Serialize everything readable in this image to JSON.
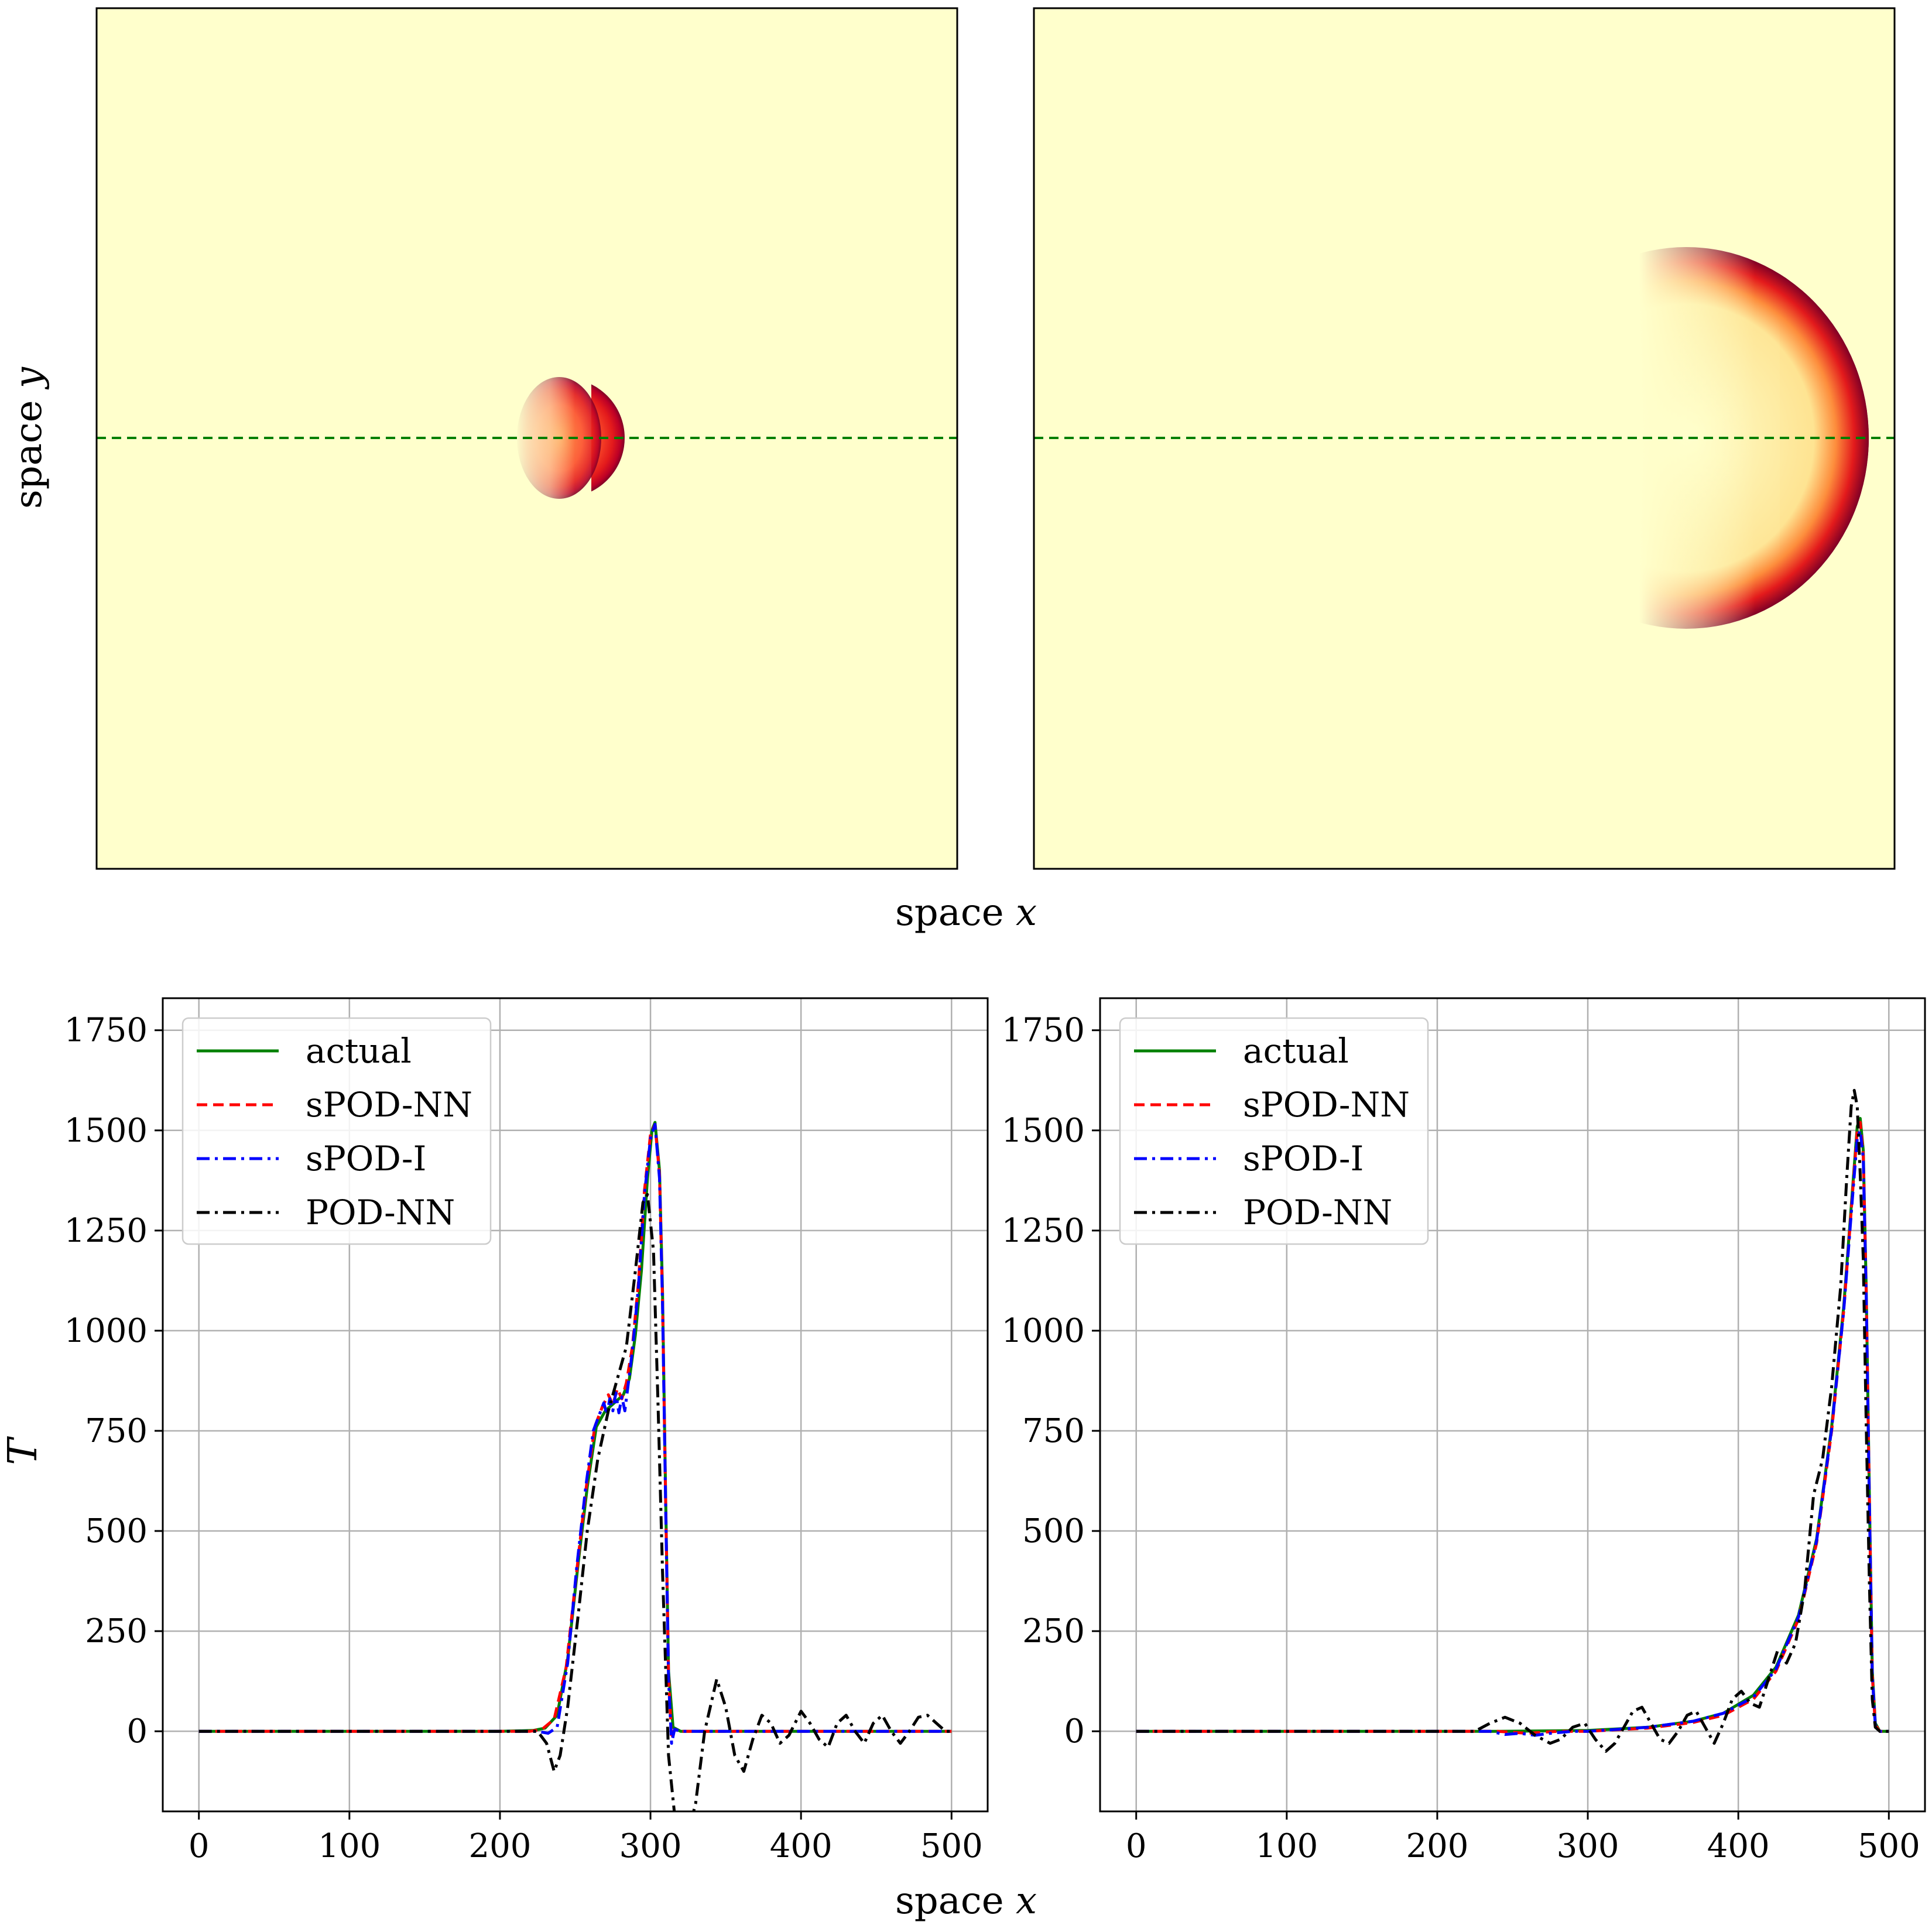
{
  "labels": {
    "top_ylabel_text": "space ",
    "top_ylabel_var": "y",
    "top_xlabel_text": "space ",
    "top_xlabel_var": "x",
    "bottom_ylabel": "T",
    "bottom_xlabel_text": "space ",
    "bottom_xlabel_var": "x"
  },
  "colors": {
    "background_field": "#ffffcc",
    "front_inner": "#fed976",
    "front_mid": "#fd8d3c",
    "front_hot": "#e31a1c",
    "front_peak": "#800026",
    "probe_line": "#007f00",
    "actual": "#008000",
    "sPOD-NN": "#ff0000",
    "sPOD-I": "#0000ff",
    "POD-NN": "#000000",
    "grid": "#b0b0b0"
  },
  "chart_data": [
    {
      "type": "heatmap",
      "panel": "top-left",
      "colormap": "YlOrRd",
      "probe_line": "horizontal dashed green line at mid height",
      "front_shape": "small half-disc flame front, right of center",
      "front_x_fraction": 0.6,
      "front_radius_fraction": 0.07
    },
    {
      "type": "heatmap",
      "panel": "top-right",
      "colormap": "YlOrRd",
      "probe_line": "horizontal dashed green line at mid height",
      "front_shape": "large crescent flame front near right edge",
      "front_x_fraction": 0.97,
      "front_radius_fraction": 0.22
    },
    {
      "type": "line",
      "panel": "bottom-left",
      "xlim": [
        -24,
        524
      ],
      "ylim": [
        -200,
        1830
      ],
      "xticks": [
        0,
        100,
        200,
        300,
        400,
        500
      ],
      "yticks": [
        0,
        250,
        500,
        750,
        1000,
        1250,
        1500,
        1750
      ],
      "grid": true,
      "legend": "top-left",
      "series": [
        {
          "name": "actual",
          "style": "solid",
          "points": [
            [
              0,
              0
            ],
            [
              200,
              0
            ],
            [
              222,
              2
            ],
            [
              230,
              8
            ],
            [
              238,
              40
            ],
            [
              245,
              180
            ],
            [
              252,
              420
            ],
            [
              258,
              610
            ],
            [
              264,
              760
            ],
            [
              270,
              800
            ],
            [
              276,
              820
            ],
            [
              282,
              840
            ],
            [
              286,
              880
            ],
            [
              290,
              990
            ],
            [
              294,
              1150
            ],
            [
              298,
              1380
            ],
            [
              301,
              1500
            ],
            [
              303,
              1520
            ],
            [
              306,
              1400
            ],
            [
              308,
              1100
            ],
            [
              310,
              600
            ],
            [
              312,
              150
            ],
            [
              315,
              10
            ],
            [
              320,
              0
            ],
            [
              500,
              0
            ]
          ]
        },
        {
          "name": "sPOD-NN",
          "style": "dashed",
          "points": [
            [
              0,
              0
            ],
            [
              220,
              0
            ],
            [
              228,
              5
            ],
            [
              236,
              30
            ],
            [
              244,
              160
            ],
            [
              251,
              400
            ],
            [
              257,
              600
            ],
            [
              263,
              760
            ],
            [
              268,
              810
            ],
            [
              272,
              840
            ],
            [
              275,
              815
            ],
            [
              278,
              855
            ],
            [
              281,
              830
            ],
            [
              284,
              870
            ],
            [
              288,
              960
            ],
            [
              292,
              1120
            ],
            [
              296,
              1350
            ],
            [
              300,
              1490
            ],
            [
              303,
              1515
            ],
            [
              306,
              1390
            ],
            [
              308,
              1080
            ],
            [
              310,
              590
            ],
            [
              312,
              140
            ],
            [
              314,
              -20
            ],
            [
              316,
              5
            ],
            [
              320,
              0
            ],
            [
              500,
              0
            ]
          ]
        },
        {
          "name": "sPOD-I",
          "style": "dashdot",
          "points": [
            [
              0,
              0
            ],
            [
              225,
              0
            ],
            [
              232,
              -5
            ],
            [
              238,
              10
            ],
            [
              245,
              170
            ],
            [
              251,
              410
            ],
            [
              257,
              610
            ],
            [
              262,
              750
            ],
            [
              266,
              790
            ],
            [
              269,
              820
            ],
            [
              271,
              790
            ],
            [
              273,
              830
            ],
            [
              275,
              800
            ],
            [
              277,
              845
            ],
            [
              279,
              795
            ],
            [
              281,
              835
            ],
            [
              283,
              800
            ],
            [
              285,
              860
            ],
            [
              288,
              950
            ],
            [
              292,
              1110
            ],
            [
              296,
              1340
            ],
            [
              300,
              1480
            ],
            [
              303,
              1515
            ],
            [
              306,
              1380
            ],
            [
              308,
              1070
            ],
            [
              310,
              580
            ],
            [
              312,
              130
            ],
            [
              314,
              -30
            ],
            [
              316,
              5
            ],
            [
              320,
              0
            ],
            [
              500,
              0
            ]
          ]
        },
        {
          "name": "POD-NN",
          "style": "dashdot",
          "points": [
            [
              0,
              0
            ],
            [
              225,
              0
            ],
            [
              231,
              -30
            ],
            [
              236,
              -100
            ],
            [
              240,
              -60
            ],
            [
              245,
              60
            ],
            [
              252,
              290
            ],
            [
              258,
              500
            ],
            [
              265,
              680
            ],
            [
              272,
              800
            ],
            [
              278,
              880
            ],
            [
              284,
              960
            ],
            [
              290,
              1150
            ],
            [
              295,
              1320
            ],
            [
              298,
              1340
            ],
            [
              302,
              1200
            ],
            [
              305,
              820
            ],
            [
              308,
              400
            ],
            [
              312,
              -60
            ],
            [
              318,
              -280
            ],
            [
              322,
              -300
            ],
            [
              330,
              -180
            ],
            [
              336,
              0
            ],
            [
              344,
              130
            ],
            [
              350,
              60
            ],
            [
              356,
              -60
            ],
            [
              362,
              -100
            ],
            [
              368,
              -20
            ],
            [
              374,
              40
            ],
            [
              380,
              20
            ],
            [
              386,
              -30
            ],
            [
              392,
              -10
            ],
            [
              400,
              50
            ],
            [
              406,
              20
            ],
            [
              412,
              -20
            ],
            [
              418,
              -40
            ],
            [
              424,
              20
            ],
            [
              430,
              40
            ],
            [
              436,
              0
            ],
            [
              442,
              -30
            ],
            [
              448,
              20
            ],
            [
              454,
              40
            ],
            [
              460,
              0
            ],
            [
              466,
              -30
            ],
            [
              472,
              0
            ],
            [
              478,
              35
            ],
            [
              484,
              40
            ],
            [
              490,
              20
            ],
            [
              496,
              0
            ],
            [
              500,
              0
            ]
          ]
        }
      ]
    },
    {
      "type": "line",
      "panel": "bottom-right",
      "xlim": [
        -24,
        524
      ],
      "ylim": [
        -200,
        1830
      ],
      "xticks": [
        0,
        100,
        200,
        300,
        400,
        500
      ],
      "yticks": [
        0,
        250,
        500,
        750,
        1000,
        1250,
        1500,
        1750
      ],
      "grid": true,
      "legend": "top-left",
      "series": [
        {
          "name": "actual",
          "style": "solid",
          "points": [
            [
              0,
              0
            ],
            [
              240,
              0
            ],
            [
              300,
              2
            ],
            [
              340,
              10
            ],
            [
              370,
              25
            ],
            [
              390,
              45
            ],
            [
              410,
              90
            ],
            [
              425,
              160
            ],
            [
              440,
              290
            ],
            [
              452,
              480
            ],
            [
              462,
              760
            ],
            [
              470,
              1060
            ],
            [
              476,
              1360
            ],
            [
              479,
              1510
            ],
            [
              481,
              1530
            ],
            [
              483,
              1450
            ],
            [
              485,
              1100
            ],
            [
              487,
              600
            ],
            [
              489,
              150
            ],
            [
              491,
              20
            ],
            [
              494,
              0
            ],
            [
              500,
              0
            ]
          ]
        },
        {
          "name": "sPOD-NN",
          "style": "dashed",
          "points": [
            [
              0,
              0
            ],
            [
              240,
              0
            ],
            [
              260,
              -5
            ],
            [
              280,
              0
            ],
            [
              300,
              0
            ],
            [
              340,
              8
            ],
            [
              370,
              22
            ],
            [
              390,
              40
            ],
            [
              410,
              80
            ],
            [
              425,
              150
            ],
            [
              440,
              280
            ],
            [
              452,
              470
            ],
            [
              462,
              750
            ],
            [
              470,
              1050
            ],
            [
              476,
              1350
            ],
            [
              479,
              1500
            ],
            [
              481,
              1520
            ],
            [
              483,
              1440
            ],
            [
              485,
              1090
            ],
            [
              487,
              590
            ],
            [
              489,
              140
            ],
            [
              491,
              15
            ],
            [
              494,
              0
            ],
            [
              500,
              0
            ]
          ]
        },
        {
          "name": "sPOD-I",
          "style": "dashdot",
          "points": [
            [
              0,
              0
            ],
            [
              235,
              0
            ],
            [
              245,
              -8
            ],
            [
              255,
              -5
            ],
            [
              265,
              -10
            ],
            [
              275,
              -5
            ],
            [
              290,
              0
            ],
            [
              300,
              0
            ],
            [
              340,
              10
            ],
            [
              370,
              25
            ],
            [
              390,
              45
            ],
            [
              410,
              85
            ],
            [
              425,
              155
            ],
            [
              440,
              285
            ],
            [
              452,
              475
            ],
            [
              462,
              755
            ],
            [
              470,
              1050
            ],
            [
              476,
              1340
            ],
            [
              479,
              1480
            ],
            [
              481,
              1500
            ],
            [
              483,
              1430
            ],
            [
              485,
              1080
            ],
            [
              487,
              580
            ],
            [
              489,
              140
            ],
            [
              491,
              15
            ],
            [
              494,
              0
            ],
            [
              500,
              0
            ]
          ]
        },
        {
          "name": "POD-NN",
          "style": "dashdot",
          "points": [
            [
              0,
              0
            ],
            [
              225,
              0
            ],
            [
              235,
              20
            ],
            [
              245,
              35
            ],
            [
              255,
              20
            ],
            [
              265,
              -10
            ],
            [
              275,
              -30
            ],
            [
              282,
              -20
            ],
            [
              290,
              10
            ],
            [
              298,
              20
            ],
            [
              305,
              -20
            ],
            [
              312,
              -50
            ],
            [
              318,
              -30
            ],
            [
              324,
              10
            ],
            [
              330,
              50
            ],
            [
              336,
              60
            ],
            [
              342,
              20
            ],
            [
              348,
              -20
            ],
            [
              354,
              -30
            ],
            [
              360,
              0
            ],
            [
              366,
              40
            ],
            [
              372,
              50
            ],
            [
              378,
              10
            ],
            [
              384,
              -30
            ],
            [
              390,
              20
            ],
            [
              396,
              80
            ],
            [
              402,
              100
            ],
            [
              408,
              70
            ],
            [
              414,
              60
            ],
            [
              420,
              130
            ],
            [
              426,
              200
            ],
            [
              432,
              170
            ],
            [
              438,
              220
            ],
            [
              444,
              350
            ],
            [
              450,
              590
            ],
            [
              456,
              680
            ],
            [
              462,
              860
            ],
            [
              468,
              1110
            ],
            [
              472,
              1380
            ],
            [
              475,
              1560
            ],
            [
              477,
              1600
            ],
            [
              479,
              1560
            ],
            [
              481,
              1390
            ],
            [
              483,
              1180
            ],
            [
              485,
              760
            ],
            [
              487,
              380
            ],
            [
              489,
              80
            ],
            [
              491,
              10
            ],
            [
              494,
              0
            ],
            [
              500,
              0
            ]
          ]
        }
      ]
    }
  ]
}
